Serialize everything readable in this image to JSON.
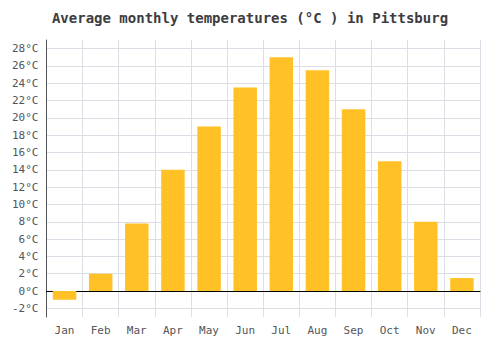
{
  "chart_data": {
    "type": "bar",
    "title": "Average monthly temperatures (°C ) in Pittsburg",
    "categories": [
      "Jan",
      "Feb",
      "Mar",
      "Apr",
      "May",
      "Jun",
      "Jul",
      "Aug",
      "Sep",
      "Oct",
      "Nov",
      "Dec"
    ],
    "values": [
      -1.0,
      2.0,
      7.8,
      14.0,
      19.0,
      23.5,
      27.0,
      25.5,
      21.0,
      15.0,
      8.0,
      1.5
    ],
    "color": "#FFC125",
    "ylim": [
      -3,
      29
    ],
    "yticks": [
      {
        "value": -2,
        "label": "-2°C"
      },
      {
        "value": 0,
        "label": "0°C"
      },
      {
        "value": 2,
        "label": "2°C"
      },
      {
        "value": 4,
        "label": "4°C"
      },
      {
        "value": 6,
        "label": "6°C"
      },
      {
        "value": 8,
        "label": "8°C"
      },
      {
        "value": 10,
        "label": "10°C"
      },
      {
        "value": 12,
        "label": "12°C"
      },
      {
        "value": 14,
        "label": "14°C"
      },
      {
        "value": 16,
        "label": "16°C"
      },
      {
        "value": 18,
        "label": "18°C"
      },
      {
        "value": 20,
        "label": "20°C"
      },
      {
        "value": 22,
        "label": "22°C"
      },
      {
        "value": 24,
        "label": "24°C"
      },
      {
        "value": 26,
        "label": "26°C"
      },
      {
        "value": 28,
        "label": "28°C"
      }
    ],
    "grid": true
  }
}
